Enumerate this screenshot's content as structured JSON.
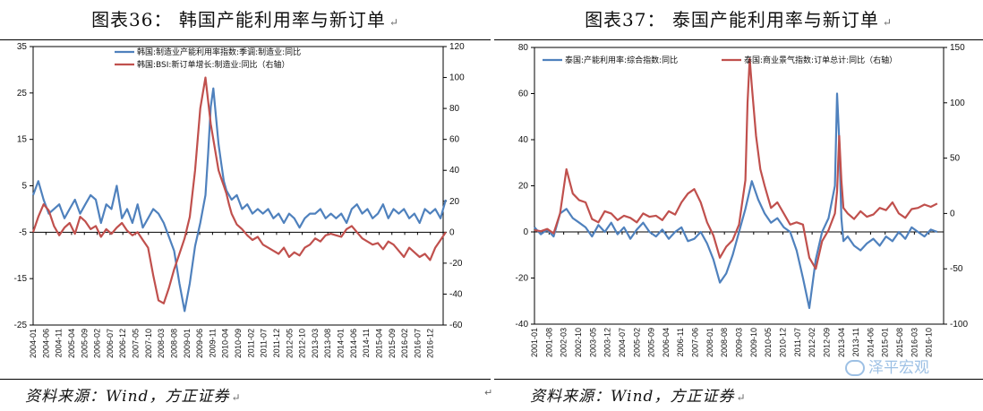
{
  "left": {
    "title": "图表36：   韩国产能利用率与新订单",
    "title_mark": "↵",
    "source": "资料来源：Wind，方正证券",
    "source_mark": "↵"
  },
  "right": {
    "title": "图表37：   泰国产能利用率与新订单",
    "title_mark": "↵",
    "source": "资料来源：Wind，方正证券",
    "source_mark": "↵"
  },
  "middle_mark": "↵",
  "watermark": "泽平宏观",
  "chart_data": [
    {
      "type": "line",
      "title": "",
      "x_tick_labels": [
        "2004-01",
        "2004-06",
        "2004-11",
        "2005-04",
        "2005-09",
        "2006-02",
        "2006-07",
        "2006-12",
        "2007-05",
        "2007-10",
        "2008-03",
        "2008-08",
        "2009-01",
        "2009-06",
        "2009-11",
        "2010-04",
        "2010-09",
        "2011-02",
        "2011-07",
        "2011-12",
        "2012-05",
        "2012-10",
        "2013-03",
        "2013-08",
        "2014-01",
        "2014-06",
        "2014-11",
        "2015-04",
        "2015-09",
        "2016-02",
        "2016-07",
        "2016-12"
      ],
      "y_left": {
        "min": -25,
        "max": 35,
        "ticks": [
          -25,
          -15,
          -5,
          5,
          15,
          25,
          35
        ]
      },
      "y_right": {
        "min": -60,
        "max": 120,
        "ticks": [
          -60,
          -40,
          -20,
          0,
          20,
          40,
          60,
          80,
          100,
          120
        ]
      },
      "zero_line_right": 0,
      "legend_position": "top-left",
      "colors": {
        "series1": "#4f81bd",
        "series2": "#c0504d"
      },
      "series": [
        {
          "name": "韩国:制造业产能利用率指数:季调:制造业:同比",
          "axis": "left",
          "x": [
            0,
            2,
            4,
            6,
            8,
            10,
            12,
            14,
            16,
            18,
            20,
            22,
            24,
            26,
            28,
            30,
            32,
            34,
            36,
            38,
            40,
            42,
            44,
            46,
            48,
            50,
            52,
            54,
            56,
            58,
            60,
            62,
            64,
            66,
            67,
            68,
            69,
            70,
            71,
            72,
            73,
            74,
            76,
            78,
            80,
            82,
            84,
            86,
            88,
            90,
            92,
            94,
            96,
            98,
            100,
            102,
            104,
            106,
            108,
            110,
            112,
            114,
            116,
            118,
            120,
            122,
            124,
            126,
            128,
            130,
            132,
            134,
            136,
            138,
            140,
            142,
            144,
            146,
            148,
            150,
            152,
            154,
            156,
            158
          ],
          "values": [
            3,
            6,
            2,
            -1,
            0,
            1,
            -2,
            0,
            2,
            -1,
            1,
            3,
            2,
            -3,
            1,
            0,
            5,
            -2,
            0,
            -3,
            1,
            -4,
            -2,
            0,
            -1,
            -3,
            -6,
            -9,
            -16,
            -22,
            -16,
            -8,
            -3,
            3,
            12,
            22,
            26,
            20,
            14,
            10,
            6,
            4,
            2,
            3,
            0,
            1,
            -1,
            0,
            -1,
            0,
            -2,
            -1,
            -3,
            -1,
            -2,
            -4,
            -2,
            -1,
            -1,
            0,
            -2,
            -1,
            -2,
            -1,
            -3,
            0,
            1,
            -1,
            0,
            -2,
            -1,
            1,
            -2,
            0,
            -1,
            0,
            -2,
            -1,
            -3,
            0,
            -1,
            0,
            -2,
            2
          ]
        },
        {
          "name": "韩国:BSI:新订单增长:制造业:同比（右轴）",
          "axis": "right",
          "x": [
            0,
            2,
            4,
            6,
            8,
            10,
            12,
            14,
            16,
            18,
            20,
            22,
            24,
            26,
            28,
            30,
            32,
            34,
            36,
            38,
            40,
            42,
            44,
            46,
            48,
            50,
            52,
            54,
            56,
            58,
            60,
            62,
            64,
            66,
            68,
            70,
            71,
            72,
            73,
            74,
            75,
            76,
            78,
            80,
            82,
            84,
            86,
            88,
            90,
            92,
            94,
            96,
            98,
            100,
            102,
            104,
            106,
            108,
            110,
            112,
            114,
            116,
            118,
            120,
            122,
            124,
            126,
            128,
            130,
            132,
            134,
            136,
            138,
            140,
            142,
            144,
            146,
            148,
            150,
            152,
            154,
            156,
            158
          ],
          "values": [
            0,
            10,
            18,
            14,
            4,
            -2,
            3,
            6,
            -1,
            10,
            7,
            2,
            4,
            -3,
            2,
            -1,
            3,
            6,
            1,
            -2,
            0,
            -5,
            -10,
            -28,
            -44,
            -46,
            -36,
            -24,
            -14,
            -4,
            10,
            40,
            80,
            100,
            70,
            50,
            40,
            35,
            30,
            25,
            18,
            12,
            5,
            2,
            -2,
            -5,
            -3,
            -8,
            -10,
            -12,
            -14,
            -10,
            -16,
            -13,
            -15,
            -10,
            -8,
            -4,
            -6,
            -2,
            -1,
            -2,
            -3,
            2,
            4,
            0,
            -4,
            -6,
            -8,
            -7,
            -11,
            -6,
            -8,
            -12,
            -16,
            -10,
            -13,
            -16,
            -14,
            -18,
            -10,
            -5,
            0
          ]
        }
      ]
    },
    {
      "type": "line",
      "title": "",
      "x_tick_labels": [
        "2001-01",
        "2001-08",
        "2002-03",
        "2002-10",
        "2003-05",
        "2003-12",
        "2004-07",
        "2005-02",
        "2005-09",
        "2006-04",
        "2006-11",
        "2007-06",
        "2008-01",
        "2008-08",
        "2009-03",
        "2009-10",
        "2010-05",
        "2010-12",
        "2011-07",
        "2012-02",
        "2012-09",
        "2013-04",
        "2013-11",
        "2014-06",
        "2015-01",
        "2015-08",
        "2016-03",
        "2016-10"
      ],
      "y_left": {
        "min": -40,
        "max": 80,
        "ticks": [
          -40,
          -20,
          0,
          20,
          40,
          60,
          80
        ]
      },
      "y_right": {
        "min": -100,
        "max": 150,
        "ticks": [
          -100,
          -50,
          0,
          50,
          100,
          150
        ]
      },
      "zero_line_left": 0,
      "legend_position": "top",
      "colors": {
        "series1": "#4f81bd",
        "series2": "#c0504d"
      },
      "series": [
        {
          "name": "泰国:产能利用率:综合指数:同比",
          "axis": "left",
          "x": [
            0,
            3,
            6,
            9,
            12,
            15,
            18,
            21,
            24,
            27,
            30,
            33,
            36,
            39,
            42,
            45,
            48,
            51,
            54,
            57,
            60,
            63,
            66,
            69,
            72,
            75,
            78,
            81,
            84,
            87,
            90,
            93,
            96,
            99,
            102,
            105,
            108,
            111,
            114,
            117,
            120,
            123,
            126,
            129,
            132,
            135,
            138,
            141,
            142,
            143,
            144,
            145,
            147,
            150,
            153,
            156,
            159,
            162,
            165,
            168,
            171,
            174,
            177,
            180,
            183,
            186,
            189
          ],
          "values": [
            2,
            -1,
            1,
            -2,
            8,
            10,
            6,
            4,
            2,
            -2,
            3,
            0,
            4,
            -1,
            2,
            -3,
            1,
            4,
            0,
            -2,
            1,
            -3,
            0,
            2,
            -4,
            -3,
            0,
            -5,
            -12,
            -22,
            -18,
            -10,
            0,
            10,
            22,
            14,
            8,
            4,
            6,
            2,
            0,
            -8,
            -20,
            -33,
            -12,
            0,
            6,
            20,
            60,
            40,
            6,
            -4,
            -2,
            -6,
            -8,
            -5,
            -3,
            -6,
            -2,
            -4,
            0,
            -3,
            2,
            0,
            -2,
            1,
            0
          ]
        },
        {
          "name": "泰国:商业景气指数:订单总计:同比（右轴）",
          "axis": "right",
          "x": [
            0,
            3,
            6,
            9,
            12,
            15,
            18,
            21,
            24,
            27,
            30,
            33,
            36,
            39,
            42,
            45,
            48,
            51,
            54,
            57,
            60,
            63,
            66,
            69,
            72,
            75,
            78,
            81,
            84,
            87,
            90,
            93,
            96,
            99,
            100,
            101,
            102,
            104,
            106,
            108,
            111,
            114,
            117,
            120,
            123,
            126,
            129,
            132,
            135,
            138,
            141,
            142,
            143,
            144,
            145,
            147,
            150,
            153,
            156,
            159,
            162,
            165,
            168,
            171,
            174,
            177,
            180,
            183,
            186,
            189
          ],
          "values": [
            -15,
            -16,
            -14,
            -18,
            0,
            40,
            18,
            12,
            10,
            -5,
            -8,
            2,
            0,
            -6,
            -2,
            -4,
            -8,
            0,
            -3,
            -2,
            -6,
            2,
            -1,
            10,
            18,
            22,
            10,
            -8,
            -20,
            -40,
            -30,
            -24,
            -10,
            30,
            100,
            140,
            115,
            70,
            40,
            25,
            5,
            10,
            0,
            -10,
            -8,
            -10,
            -40,
            -50,
            -25,
            -15,
            0,
            20,
            70,
            30,
            5,
            0,
            -5,
            2,
            -3,
            -1,
            5,
            3,
            10,
            0,
            -4,
            4,
            5,
            8,
            6,
            9
          ]
        }
      ]
    }
  ]
}
